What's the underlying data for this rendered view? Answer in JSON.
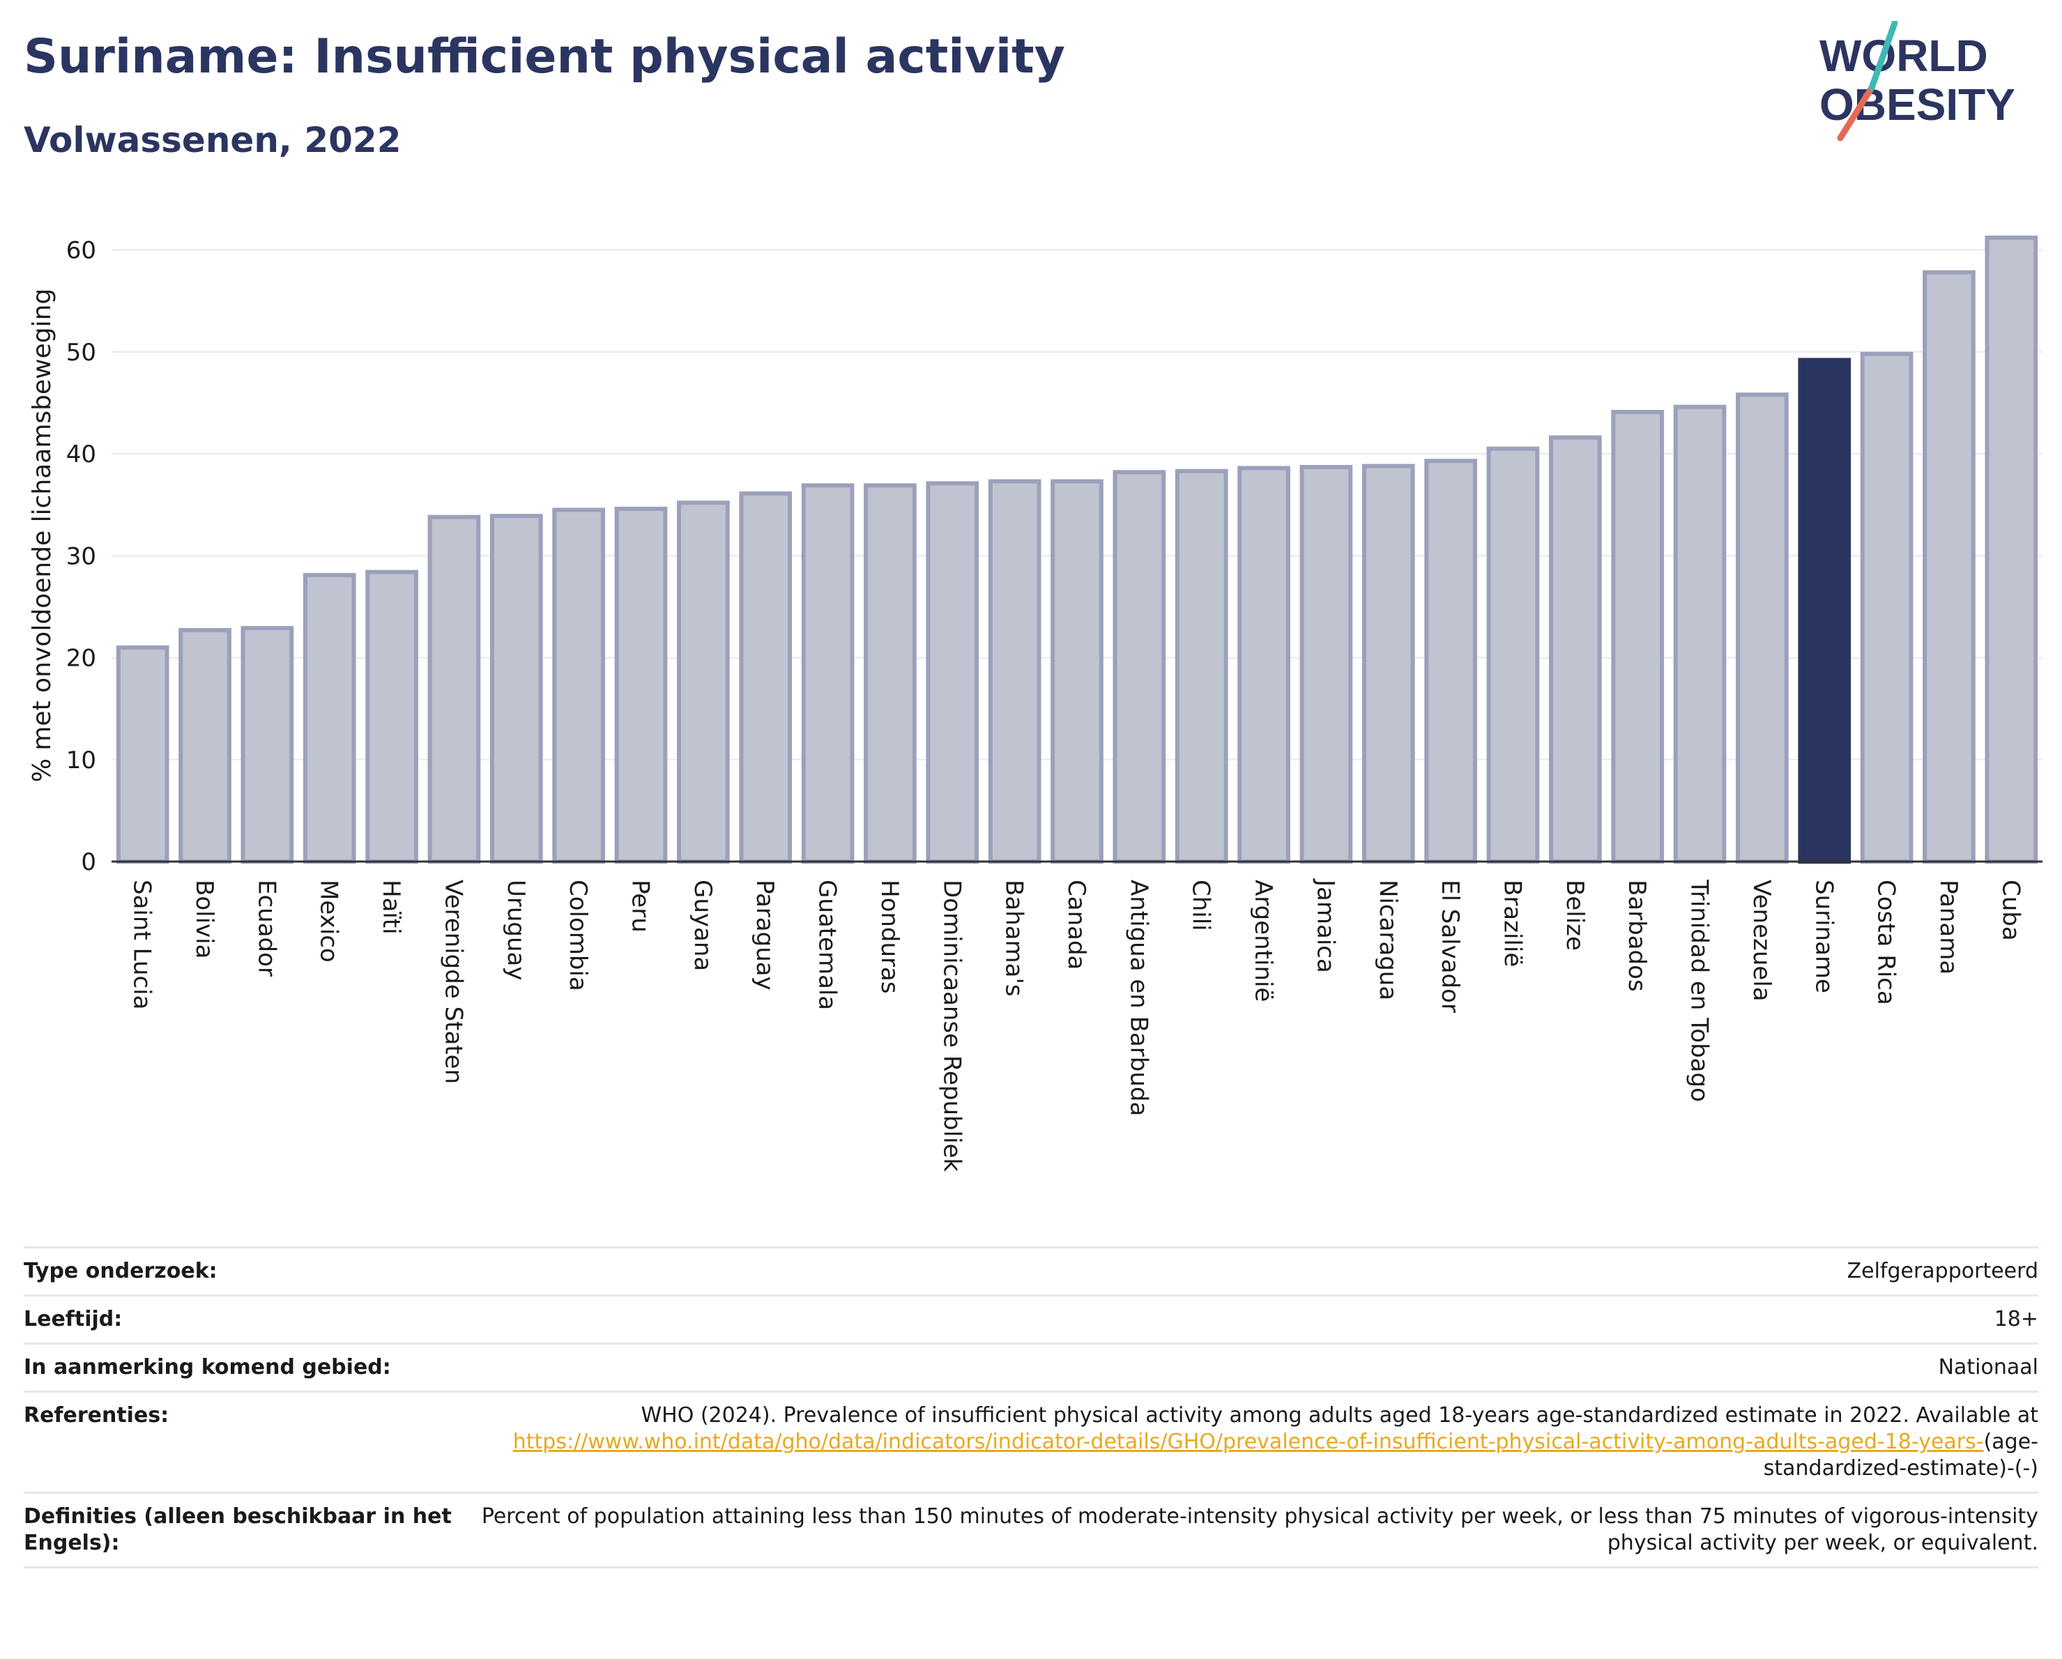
{
  "header": {
    "title": "Suriname: Insufficient physical activity",
    "subtitle": "Volwassenen, 2022"
  },
  "logo": {
    "line1": "WORLD",
    "line2": "OBESITY"
  },
  "colors": {
    "bar": "#c0c3d0",
    "bar_border": "#9ba1bb",
    "highlight": "#2b3561",
    "text_dark": "#2b3561",
    "link": "#e8a91d"
  },
  "chart_data": {
    "type": "bar",
    "categories": [
      "Saint Lucia",
      "Bolivia",
      "Ecuador",
      "Mexico",
      "Haïti",
      "Verenigde Staten",
      "Uruguay",
      "Colombia",
      "Peru",
      "Guyana",
      "Paraguay",
      "Guatemala",
      "Honduras",
      "Dominicaanse Republiek",
      "Bahama's",
      "Canada",
      "Antigua en Barbuda",
      "Chili",
      "Argentinië",
      "Jamaica",
      "Nicaragua",
      "El Salvador",
      "Brazilië",
      "Belize",
      "Barbados",
      "Trinidad en Tobago",
      "Venezuela",
      "Suriname",
      "Costa Rica",
      "Panama",
      "Cuba"
    ],
    "values": [
      21.0,
      22.7,
      22.9,
      28.1,
      28.4,
      33.8,
      33.9,
      34.5,
      34.6,
      35.2,
      36.1,
      36.9,
      36.9,
      37.1,
      37.3,
      37.3,
      38.2,
      38.3,
      38.6,
      38.7,
      38.8,
      39.3,
      40.5,
      41.6,
      44.1,
      44.6,
      45.8,
      49.2,
      49.8,
      57.8,
      61.2
    ],
    "highlight": "Suriname",
    "ylabel": "% met onvoldoende lichaamsbeweging",
    "xlabel": "",
    "ylim": [
      0,
      64
    ],
    "yticks": [
      0,
      10,
      20,
      30,
      40,
      50,
      60
    ],
    "grid": true
  },
  "info": [
    {
      "label": "Type onderzoek:",
      "value": "Zelfgerapporteerd"
    },
    {
      "label": "Leeftijd:",
      "value": "18+"
    },
    {
      "label": "In aanmerking komend gebied:",
      "value": "Nationaal"
    }
  ],
  "references": {
    "label": "Referenties:",
    "text": "WHO (2024). Prevalence of insufficient physical activity among adults aged 18-years age-standardized estimate in 2022. Available at",
    "link": "https://www.who.int/data/gho/data/indicators/indicator-details/GHO/prevalence-of-insufficient-physical-activity-among-adults-aged-18-years-",
    "suffix": "(age-standardized-estimate)-(-)"
  },
  "definitions": {
    "label": "Definities (alleen beschikbaar in het Engels):",
    "text": "Percent of population attaining less than 150 minutes of moderate-intensity physical activity per week, or less than 75 minutes of vigorous-intensity physical activity per week, or equivalent."
  }
}
